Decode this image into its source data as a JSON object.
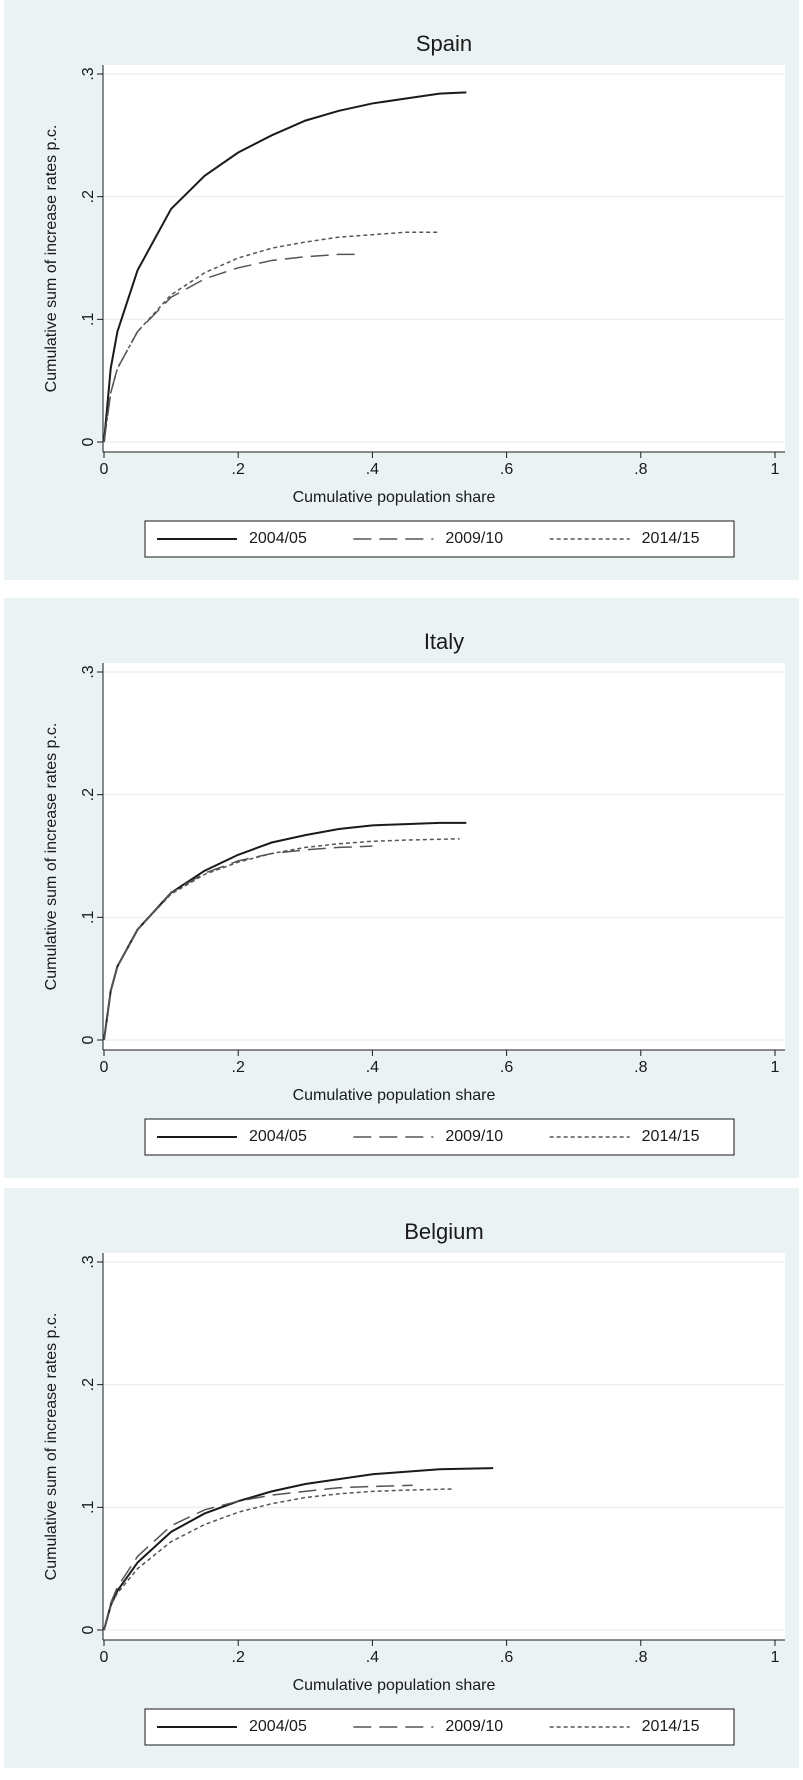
{
  "chart_data": [
    {
      "type": "line",
      "title": "Spain",
      "xlabel": "Cumulative population share",
      "ylabel": "Cumulative sum of increase rates p.c.",
      "xlim": [
        0,
        1
      ],
      "ylim": [
        0,
        0.3
      ],
      "xticks": [
        0,
        {
          "value": 0.2,
          "label": ".2"
        },
        {
          "value": 0.4,
          "label": ".4"
        },
        {
          "value": 0.6,
          "label": ".6"
        },
        {
          "value": 0.8,
          "label": ".8"
        },
        1
      ],
      "yticks": [
        0,
        {
          "value": 0.1,
          "label": ".1"
        },
        {
          "value": 0.2,
          "label": ".2"
        },
        {
          "value": 0.3,
          "label": ".3"
        }
      ],
      "grid": true,
      "series": [
        {
          "name": "2004/05",
          "color": "#1a1a1a",
          "dash": "solid",
          "x": [
            0,
            0.01,
            0.02,
            0.05,
            0.1,
            0.15,
            0.2,
            0.25,
            0.3,
            0.35,
            0.4,
            0.45,
            0.5,
            0.54
          ],
          "values": [
            0,
            0.06,
            0.09,
            0.14,
            0.19,
            0.217,
            0.236,
            0.25,
            0.262,
            0.27,
            0.276,
            0.28,
            0.284,
            0.285
          ]
        },
        {
          "name": "2009/10",
          "color": "#555555",
          "dash": "longdash",
          "x": [
            0,
            0.01,
            0.02,
            0.05,
            0.1,
            0.15,
            0.2,
            0.25,
            0.3,
            0.35,
            0.38
          ],
          "values": [
            0,
            0.04,
            0.06,
            0.09,
            0.118,
            0.133,
            0.142,
            0.148,
            0.151,
            0.153,
            0.153
          ]
        },
        {
          "name": "2014/15",
          "color": "#555555",
          "dash": "shortdash",
          "x": [
            0,
            0.01,
            0.02,
            0.05,
            0.1,
            0.15,
            0.2,
            0.25,
            0.3,
            0.35,
            0.4,
            0.45,
            0.5
          ],
          "values": [
            0,
            0.04,
            0.06,
            0.09,
            0.12,
            0.138,
            0.15,
            0.158,
            0.163,
            0.167,
            0.169,
            0.171,
            0.171
          ]
        }
      ]
    },
    {
      "type": "line",
      "title": "Italy",
      "xlabel": "Cumulative population share",
      "ylabel": "Cumulative sum of increase rates p.c.",
      "xlim": [
        0,
        1
      ],
      "ylim": [
        0,
        0.3
      ],
      "xticks": [
        0,
        {
          "value": 0.2,
          "label": ".2"
        },
        {
          "value": 0.4,
          "label": ".4"
        },
        {
          "value": 0.6,
          "label": ".6"
        },
        {
          "value": 0.8,
          "label": ".8"
        },
        1
      ],
      "yticks": [
        0,
        {
          "value": 0.1,
          "label": ".1"
        },
        {
          "value": 0.2,
          "label": ".2"
        },
        {
          "value": 0.3,
          "label": ".3"
        }
      ],
      "grid": true,
      "series": [
        {
          "name": "2004/05",
          "color": "#1a1a1a",
          "dash": "solid",
          "x": [
            0,
            0.01,
            0.02,
            0.05,
            0.1,
            0.15,
            0.2,
            0.25,
            0.3,
            0.35,
            0.4,
            0.45,
            0.5,
            0.54
          ],
          "values": [
            0,
            0.04,
            0.06,
            0.09,
            0.12,
            0.138,
            0.151,
            0.161,
            0.167,
            0.172,
            0.175,
            0.176,
            0.177,
            0.177
          ]
        },
        {
          "name": "2009/10",
          "color": "#555555",
          "dash": "longdash",
          "x": [
            0,
            0.01,
            0.02,
            0.05,
            0.1,
            0.15,
            0.2,
            0.25,
            0.3,
            0.35,
            0.4
          ],
          "values": [
            0,
            0.04,
            0.06,
            0.09,
            0.12,
            0.136,
            0.146,
            0.152,
            0.155,
            0.157,
            0.158
          ]
        },
        {
          "name": "2014/15",
          "color": "#555555",
          "dash": "shortdash",
          "x": [
            0,
            0.01,
            0.02,
            0.05,
            0.1,
            0.15,
            0.2,
            0.25,
            0.3,
            0.35,
            0.4,
            0.45,
            0.53
          ],
          "values": [
            0,
            0.04,
            0.06,
            0.09,
            0.119,
            0.135,
            0.145,
            0.152,
            0.157,
            0.16,
            0.162,
            0.163,
            0.164
          ]
        }
      ]
    },
    {
      "type": "line",
      "title": "Belgium",
      "xlabel": "Cumulative population share",
      "ylabel": "Cumulative sum of increase rates p.c.",
      "xlim": [
        0,
        1
      ],
      "ylim": [
        0,
        0.3
      ],
      "xticks": [
        0,
        {
          "value": 0.2,
          "label": ".2"
        },
        {
          "value": 0.4,
          "label": ".4"
        },
        {
          "value": 0.6,
          "label": ".6"
        },
        {
          "value": 0.8,
          "label": ".8"
        },
        1
      ],
      "yticks": [
        0,
        {
          "value": 0.1,
          "label": ".1"
        },
        {
          "value": 0.2,
          "label": ".2"
        },
        {
          "value": 0.3,
          "label": ".3"
        }
      ],
      "grid": true,
      "series": [
        {
          "name": "2004/05",
          "color": "#1a1a1a",
          "dash": "solid",
          "x": [
            0,
            0.01,
            0.02,
            0.05,
            0.1,
            0.15,
            0.2,
            0.25,
            0.3,
            0.35,
            0.4,
            0.45,
            0.5,
            0.58
          ],
          "values": [
            0,
            0.02,
            0.032,
            0.055,
            0.08,
            0.095,
            0.105,
            0.113,
            0.119,
            0.123,
            0.127,
            0.129,
            0.131,
            0.132
          ]
        },
        {
          "name": "2009/10",
          "color": "#555555",
          "dash": "longdash",
          "x": [
            0,
            0.01,
            0.02,
            0.05,
            0.1,
            0.15,
            0.2,
            0.25,
            0.3,
            0.35,
            0.4,
            0.46
          ],
          "values": [
            0,
            0.022,
            0.035,
            0.06,
            0.085,
            0.098,
            0.105,
            0.11,
            0.113,
            0.116,
            0.117,
            0.118
          ]
        },
        {
          "name": "2014/15",
          "color": "#555555",
          "dash": "shortdash",
          "x": [
            0,
            0.01,
            0.02,
            0.05,
            0.1,
            0.15,
            0.2,
            0.25,
            0.3,
            0.35,
            0.4,
            0.45,
            0.52
          ],
          "values": [
            0,
            0.02,
            0.03,
            0.05,
            0.072,
            0.086,
            0.096,
            0.103,
            0.108,
            0.111,
            0.113,
            0.114,
            0.115
          ]
        }
      ]
    }
  ]
}
